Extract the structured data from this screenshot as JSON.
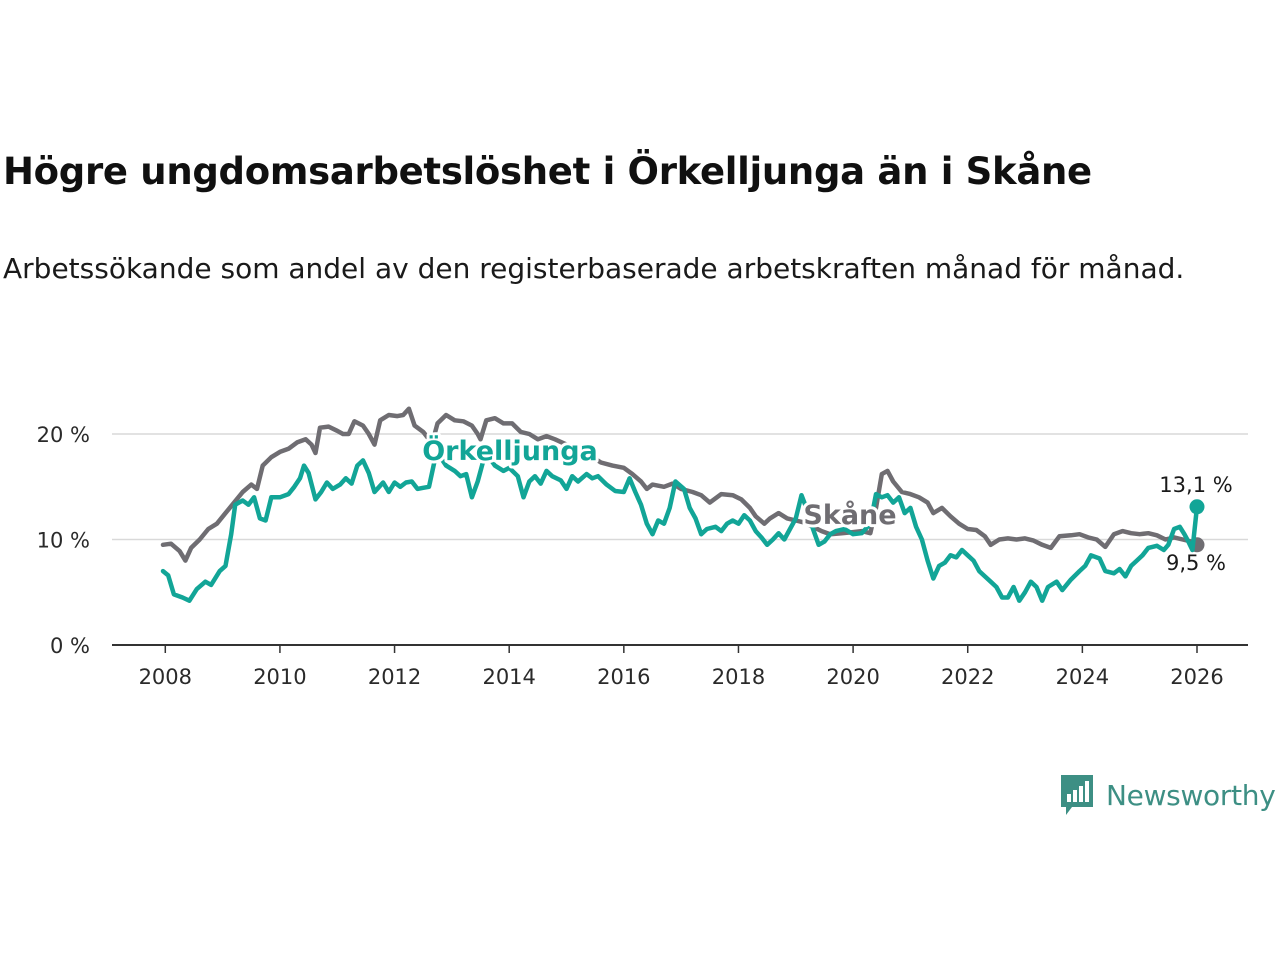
{
  "title": "Högre ungdomsarbetslöshet i Örkelljunga än i Skåne",
  "subtitle": "Arbetssökande som andel av den registerbaserade arbetskraften månad för månad.",
  "brand": {
    "name": "Newsworthy",
    "color": "#3d8f84"
  },
  "colors": {
    "orkelljunga": "#12a597",
    "skane": "#6f6d72",
    "grid": "#d9d9d9",
    "axis": "#333333"
  },
  "chart_data": {
    "type": "line",
    "title": "Högre ungdomsarbetslöshet i Örkelljunga än i Skåne",
    "xlabel": "",
    "ylabel": "",
    "xlim": [
      2007.67,
      2027.0
    ],
    "ylim": [
      0,
      20
    ],
    "grid": true,
    "x_ticks": [
      2008,
      2010,
      2012,
      2014,
      2016,
      2018,
      2020,
      2022,
      2024,
      2026
    ],
    "x_tick_labels": [
      "2008",
      "2010",
      "2012",
      "2014",
      "2016",
      "2018",
      "2020",
      "2022",
      "2024",
      "2026"
    ],
    "y_ticks": [
      0,
      10,
      20
    ],
    "y_tick_labels": [
      "0 %",
      "10 %",
      "20 %"
    ],
    "series": [
      {
        "name": "Skåne",
        "label": "Skåne",
        "color": "#6f6d72",
        "end_label": "9,5 %",
        "points": [
          [
            2007.96,
            9.5
          ],
          [
            2008.1,
            9.6
          ],
          [
            2008.25,
            8.9
          ],
          [
            2008.35,
            8.0
          ],
          [
            2008.45,
            9.2
          ],
          [
            2008.6,
            10.0
          ],
          [
            2008.75,
            11.0
          ],
          [
            2008.9,
            11.5
          ],
          [
            2009.05,
            12.5
          ],
          [
            2009.2,
            13.5
          ],
          [
            2009.35,
            14.5
          ],
          [
            2009.5,
            15.2
          ],
          [
            2009.6,
            14.8
          ],
          [
            2009.7,
            17.0
          ],
          [
            2009.85,
            17.8
          ],
          [
            2010.0,
            18.3
          ],
          [
            2010.15,
            18.6
          ],
          [
            2010.3,
            19.2
          ],
          [
            2010.45,
            19.5
          ],
          [
            2010.55,
            19.0
          ],
          [
            2010.62,
            18.2
          ],
          [
            2010.7,
            20.6
          ],
          [
            2010.85,
            20.7
          ],
          [
            2011.0,
            20.3
          ],
          [
            2011.1,
            20.0
          ],
          [
            2011.2,
            20.0
          ],
          [
            2011.3,
            21.2
          ],
          [
            2011.45,
            20.8
          ],
          [
            2011.55,
            20.0
          ],
          [
            2011.65,
            19.0
          ],
          [
            2011.75,
            21.3
          ],
          [
            2011.9,
            21.8
          ],
          [
            2012.05,
            21.7
          ],
          [
            2012.15,
            21.8
          ],
          [
            2012.25,
            22.4
          ],
          [
            2012.35,
            20.8
          ],
          [
            2012.5,
            20.2
          ],
          [
            2012.6,
            19.5
          ],
          [
            2012.65,
            19.0
          ],
          [
            2012.75,
            21.0
          ],
          [
            2012.9,
            21.8
          ],
          [
            2013.05,
            21.3
          ],
          [
            2013.2,
            21.2
          ],
          [
            2013.35,
            20.8
          ],
          [
            2013.45,
            20.0
          ],
          [
            2013.5,
            19.5
          ],
          [
            2013.6,
            21.3
          ],
          [
            2013.75,
            21.5
          ],
          [
            2013.9,
            21.0
          ],
          [
            2014.05,
            21.0
          ],
          [
            2014.2,
            20.2
          ],
          [
            2014.35,
            20.0
          ],
          [
            2014.5,
            19.5
          ],
          [
            2014.65,
            19.8
          ],
          [
            2014.8,
            19.5
          ],
          [
            2015.0,
            19.0
          ],
          [
            2015.2,
            18.5
          ],
          [
            2015.4,
            18.0
          ],
          [
            2015.6,
            17.3
          ],
          [
            2015.8,
            17.0
          ],
          [
            2016.0,
            16.8
          ],
          [
            2016.15,
            16.2
          ],
          [
            2016.3,
            15.5
          ],
          [
            2016.4,
            14.8
          ],
          [
            2016.5,
            15.2
          ],
          [
            2016.7,
            15.0
          ],
          [
            2016.85,
            15.3
          ],
          [
            2017.0,
            14.8
          ],
          [
            2017.2,
            14.5
          ],
          [
            2017.35,
            14.2
          ],
          [
            2017.5,
            13.5
          ],
          [
            2017.7,
            14.3
          ],
          [
            2017.9,
            14.2
          ],
          [
            2018.05,
            13.8
          ],
          [
            2018.2,
            13.0
          ],
          [
            2018.3,
            12.2
          ],
          [
            2018.45,
            11.5
          ],
          [
            2018.55,
            12.0
          ],
          [
            2018.7,
            12.5
          ],
          [
            2018.85,
            12.0
          ],
          [
            2019.0,
            11.8
          ],
          [
            2019.15,
            11.6
          ],
          [
            2019.3,
            11.2
          ],
          [
            2019.45,
            10.8
          ],
          [
            2019.6,
            10.5
          ],
          [
            2019.8,
            10.6
          ],
          [
            2020.0,
            10.7
          ],
          [
            2020.15,
            10.8
          ],
          [
            2020.3,
            10.6
          ],
          [
            2020.4,
            13.0
          ],
          [
            2020.5,
            16.2
          ],
          [
            2020.6,
            16.5
          ],
          [
            2020.7,
            15.5
          ],
          [
            2020.85,
            14.5
          ],
          [
            2021.0,
            14.3
          ],
          [
            2021.15,
            14.0
          ],
          [
            2021.3,
            13.5
          ],
          [
            2021.4,
            12.5
          ],
          [
            2021.55,
            13.0
          ],
          [
            2021.7,
            12.2
          ],
          [
            2021.85,
            11.5
          ],
          [
            2022.0,
            11.0
          ],
          [
            2022.15,
            10.9
          ],
          [
            2022.3,
            10.3
          ],
          [
            2022.4,
            9.5
          ],
          [
            2022.55,
            10.0
          ],
          [
            2022.7,
            10.1
          ],
          [
            2022.85,
            10.0
          ],
          [
            2023.0,
            10.1
          ],
          [
            2023.15,
            9.9
          ],
          [
            2023.3,
            9.5
          ],
          [
            2023.45,
            9.2
          ],
          [
            2023.6,
            10.3
          ],
          [
            2023.8,
            10.4
          ],
          [
            2023.95,
            10.5
          ],
          [
            2024.1,
            10.2
          ],
          [
            2024.25,
            10.0
          ],
          [
            2024.4,
            9.3
          ],
          [
            2024.55,
            10.5
          ],
          [
            2024.7,
            10.8
          ],
          [
            2024.85,
            10.6
          ],
          [
            2025.0,
            10.5
          ],
          [
            2025.15,
            10.6
          ],
          [
            2025.3,
            10.4
          ],
          [
            2025.45,
            10.0
          ],
          [
            2025.6,
            10.2
          ],
          [
            2025.75,
            10.0
          ],
          [
            2025.9,
            9.8
          ],
          [
            2026.0,
            9.5
          ]
        ]
      },
      {
        "name": "Örkelljunga",
        "label": "Örkelljunga",
        "color": "#12a597",
        "end_label": "13,1 %",
        "points": [
          [
            2007.96,
            7.0
          ],
          [
            2008.05,
            6.6
          ],
          [
            2008.15,
            4.8
          ],
          [
            2008.3,
            4.5
          ],
          [
            2008.42,
            4.2
          ],
          [
            2008.55,
            5.3
          ],
          [
            2008.7,
            6.0
          ],
          [
            2008.8,
            5.7
          ],
          [
            2008.95,
            7.0
          ],
          [
            2009.05,
            7.5
          ],
          [
            2009.15,
            10.5
          ],
          [
            2009.22,
            13.3
          ],
          [
            2009.35,
            13.7
          ],
          [
            2009.45,
            13.3
          ],
          [
            2009.55,
            14.0
          ],
          [
            2009.65,
            12.0
          ],
          [
            2009.75,
            11.8
          ],
          [
            2009.85,
            14.0
          ],
          [
            2010.0,
            14.0
          ],
          [
            2010.15,
            14.3
          ],
          [
            2010.25,
            15.0
          ],
          [
            2010.35,
            15.8
          ],
          [
            2010.42,
            17.0
          ],
          [
            2010.5,
            16.3
          ],
          [
            2010.62,
            13.8
          ],
          [
            2010.72,
            14.5
          ],
          [
            2010.82,
            15.4
          ],
          [
            2010.92,
            14.8
          ],
          [
            2011.05,
            15.2
          ],
          [
            2011.15,
            15.8
          ],
          [
            2011.25,
            15.3
          ],
          [
            2011.35,
            17.0
          ],
          [
            2011.45,
            17.5
          ],
          [
            2011.55,
            16.3
          ],
          [
            2011.65,
            14.5
          ],
          [
            2011.8,
            15.4
          ],
          [
            2011.9,
            14.5
          ],
          [
            2012.0,
            15.4
          ],
          [
            2012.1,
            15.0
          ],
          [
            2012.2,
            15.4
          ],
          [
            2012.3,
            15.5
          ],
          [
            2012.4,
            14.8
          ],
          [
            2012.5,
            14.9
          ],
          [
            2012.6,
            15.0
          ],
          [
            2012.7,
            17.5
          ],
          [
            2012.8,
            17.8
          ],
          [
            2012.9,
            17.0
          ],
          [
            2013.05,
            16.5
          ],
          [
            2013.15,
            16.0
          ],
          [
            2013.25,
            16.2
          ],
          [
            2013.35,
            14.0
          ],
          [
            2013.45,
            15.5
          ],
          [
            2013.55,
            17.5
          ],
          [
            2013.65,
            17.8
          ],
          [
            2013.75,
            17.0
          ],
          [
            2013.9,
            16.5
          ],
          [
            2014.0,
            16.8
          ],
          [
            2014.15,
            16.0
          ],
          [
            2014.25,
            14.0
          ],
          [
            2014.35,
            15.5
          ],
          [
            2014.45,
            16.0
          ],
          [
            2014.55,
            15.3
          ],
          [
            2014.65,
            16.5
          ],
          [
            2014.75,
            16.0
          ],
          [
            2014.9,
            15.6
          ],
          [
            2015.0,
            14.8
          ],
          [
            2015.1,
            16.0
          ],
          [
            2015.2,
            15.5
          ],
          [
            2015.35,
            16.2
          ],
          [
            2015.45,
            15.8
          ],
          [
            2015.55,
            16.0
          ],
          [
            2015.7,
            15.2
          ],
          [
            2015.85,
            14.6
          ],
          [
            2016.0,
            14.5
          ],
          [
            2016.1,
            15.8
          ],
          [
            2016.2,
            14.5
          ],
          [
            2016.3,
            13.3
          ],
          [
            2016.4,
            11.5
          ],
          [
            2016.5,
            10.5
          ],
          [
            2016.6,
            11.8
          ],
          [
            2016.7,
            11.5
          ],
          [
            2016.8,
            13.0
          ],
          [
            2016.9,
            15.5
          ],
          [
            2017.05,
            14.8
          ],
          [
            2017.15,
            13.0
          ],
          [
            2017.25,
            12.0
          ],
          [
            2017.35,
            10.5
          ],
          [
            2017.45,
            11.0
          ],
          [
            2017.6,
            11.2
          ],
          [
            2017.7,
            10.8
          ],
          [
            2017.8,
            11.5
          ],
          [
            2017.9,
            11.8
          ],
          [
            2018.0,
            11.5
          ],
          [
            2018.1,
            12.3
          ],
          [
            2018.2,
            11.8
          ],
          [
            2018.3,
            10.8
          ],
          [
            2018.4,
            10.2
          ],
          [
            2018.5,
            9.5
          ],
          [
            2018.6,
            10.0
          ],
          [
            2018.7,
            10.6
          ],
          [
            2018.8,
            10.0
          ],
          [
            2018.9,
            11.0
          ],
          [
            2019.0,
            12.0
          ],
          [
            2019.1,
            14.2
          ],
          [
            2019.2,
            12.8
          ],
          [
            2019.3,
            11.0
          ],
          [
            2019.4,
            9.5
          ],
          [
            2019.5,
            9.8
          ],
          [
            2019.6,
            10.5
          ],
          [
            2019.7,
            10.8
          ],
          [
            2019.85,
            11.0
          ],
          [
            2020.0,
            10.5
          ],
          [
            2020.15,
            10.6
          ],
          [
            2020.3,
            11.5
          ],
          [
            2020.4,
            14.3
          ],
          [
            2020.5,
            14.0
          ],
          [
            2020.6,
            14.2
          ],
          [
            2020.7,
            13.5
          ],
          [
            2020.8,
            14.0
          ],
          [
            2020.9,
            12.5
          ],
          [
            2021.0,
            13.0
          ],
          [
            2021.1,
            11.2
          ],
          [
            2021.2,
            10.0
          ],
          [
            2021.3,
            8.0
          ],
          [
            2021.4,
            6.3
          ],
          [
            2021.5,
            7.5
          ],
          [
            2021.6,
            7.8
          ],
          [
            2021.7,
            8.5
          ],
          [
            2021.8,
            8.3
          ],
          [
            2021.9,
            9.0
          ],
          [
            2022.0,
            8.5
          ],
          [
            2022.1,
            8.0
          ],
          [
            2022.2,
            7.0
          ],
          [
            2022.3,
            6.5
          ],
          [
            2022.4,
            6.0
          ],
          [
            2022.5,
            5.5
          ],
          [
            2022.6,
            4.5
          ],
          [
            2022.7,
            4.5
          ],
          [
            2022.8,
            5.5
          ],
          [
            2022.9,
            4.2
          ],
          [
            2023.0,
            5.0
          ],
          [
            2023.1,
            6.0
          ],
          [
            2023.2,
            5.5
          ],
          [
            2023.3,
            4.2
          ],
          [
            2023.4,
            5.5
          ],
          [
            2023.55,
            6.0
          ],
          [
            2023.65,
            5.2
          ],
          [
            2023.8,
            6.2
          ],
          [
            2023.95,
            7.0
          ],
          [
            2024.05,
            7.5
          ],
          [
            2024.15,
            8.5
          ],
          [
            2024.3,
            8.2
          ],
          [
            2024.4,
            7.0
          ],
          [
            2024.55,
            6.8
          ],
          [
            2024.65,
            7.2
          ],
          [
            2024.75,
            6.5
          ],
          [
            2024.85,
            7.5
          ],
          [
            2024.95,
            8.0
          ],
          [
            2025.05,
            8.5
          ],
          [
            2025.15,
            9.2
          ],
          [
            2025.3,
            9.4
          ],
          [
            2025.42,
            9.0
          ],
          [
            2025.5,
            9.5
          ],
          [
            2025.6,
            11.0
          ],
          [
            2025.7,
            11.2
          ],
          [
            2025.78,
            10.5
          ],
          [
            2025.85,
            9.8
          ],
          [
            2025.92,
            9.0
          ],
          [
            2026.0,
            13.1
          ]
        ]
      }
    ]
  }
}
